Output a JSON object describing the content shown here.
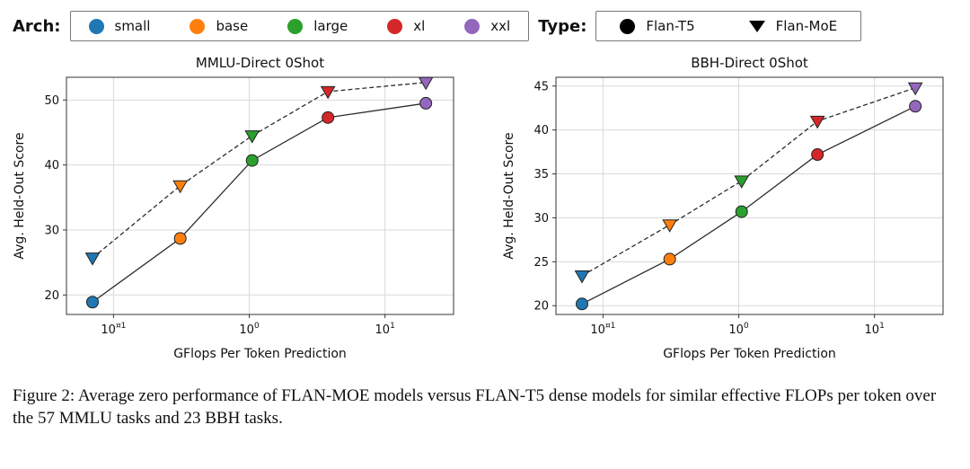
{
  "legend": {
    "arch_label": "Arch:",
    "arch_items": [
      {
        "label": "small",
        "color": "#1f77b4"
      },
      {
        "label": "base",
        "color": "#ff7f0e"
      },
      {
        "label": "large",
        "color": "#2ca02c"
      },
      {
        "label": "xl",
        "color": "#d62728"
      },
      {
        "label": "xxl",
        "color": "#9467bd"
      }
    ],
    "type_label": "Type:",
    "type_items": [
      {
        "label": "Flan-T5",
        "marker": "circle",
        "color": "#000000"
      },
      {
        "label": "Flan-MoE",
        "marker": "triangle-down",
        "color": "#000000"
      }
    ]
  },
  "chart_data": [
    {
      "type": "line",
      "title": "MMLU-Direct 0Shot",
      "xlabel": "GFlops Per Token Prediction",
      "ylabel": "Avg. Held-Out Score",
      "xscale": "log",
      "grid": true,
      "xlim": [
        0.045,
        32
      ],
      "ylim": [
        17,
        53.5
      ],
      "yticks": [
        20,
        30,
        40,
        50
      ],
      "xticks": [
        {
          "value": 0.1,
          "base": "10",
          "exp": "¤1"
        },
        {
          "value": 1,
          "base": "10",
          "exp": "0"
        },
        {
          "value": 10,
          "base": "10",
          "exp": "1"
        }
      ],
      "x": [
        0.07,
        0.31,
        1.05,
        3.8,
        20
      ],
      "point_colors": [
        "#1f77b4",
        "#ff7f0e",
        "#2ca02c",
        "#d62728",
        "#9467bd"
      ],
      "series": [
        {
          "name": "Flan-T5",
          "marker": "circle",
          "line": "solid",
          "values": [
            18.9,
            28.7,
            40.7,
            47.3,
            49.5
          ]
        },
        {
          "name": "Flan-MoE",
          "marker": "triangle-down",
          "line": "dashed",
          "values": [
            25.7,
            36.8,
            44.5,
            51.3,
            52.7
          ]
        }
      ]
    },
    {
      "type": "line",
      "title": "BBH-Direct 0Shot",
      "xlabel": "GFlops Per Token Prediction",
      "ylabel": "Avg. Held-Out Score",
      "xscale": "log",
      "grid": true,
      "xlim": [
        0.045,
        32
      ],
      "ylim": [
        19,
        46
      ],
      "yticks": [
        20,
        25,
        30,
        35,
        40,
        45
      ],
      "xticks": [
        {
          "value": 0.1,
          "base": "10",
          "exp": "¤1"
        },
        {
          "value": 1,
          "base": "10",
          "exp": "0"
        },
        {
          "value": 10,
          "base": "10",
          "exp": "1"
        }
      ],
      "x": [
        0.07,
        0.31,
        1.05,
        3.8,
        20
      ],
      "point_colors": [
        "#1f77b4",
        "#ff7f0e",
        "#2ca02c",
        "#d62728",
        "#9467bd"
      ],
      "series": [
        {
          "name": "Flan-T5",
          "marker": "circle",
          "line": "solid",
          "values": [
            20.2,
            25.3,
            30.7,
            37.2,
            42.7
          ]
        },
        {
          "name": "Flan-MoE",
          "marker": "triangle-down",
          "line": "dashed",
          "values": [
            23.4,
            29.2,
            34.2,
            41.0,
            44.8
          ]
        }
      ]
    }
  ],
  "caption": {
    "text": "Figure 2: Average zero performance of FLAN-MOE models versus FLAN-T5 dense models for similar effective FLOPs per token over the 57 MMLU tasks and 23 BBH tasks."
  }
}
